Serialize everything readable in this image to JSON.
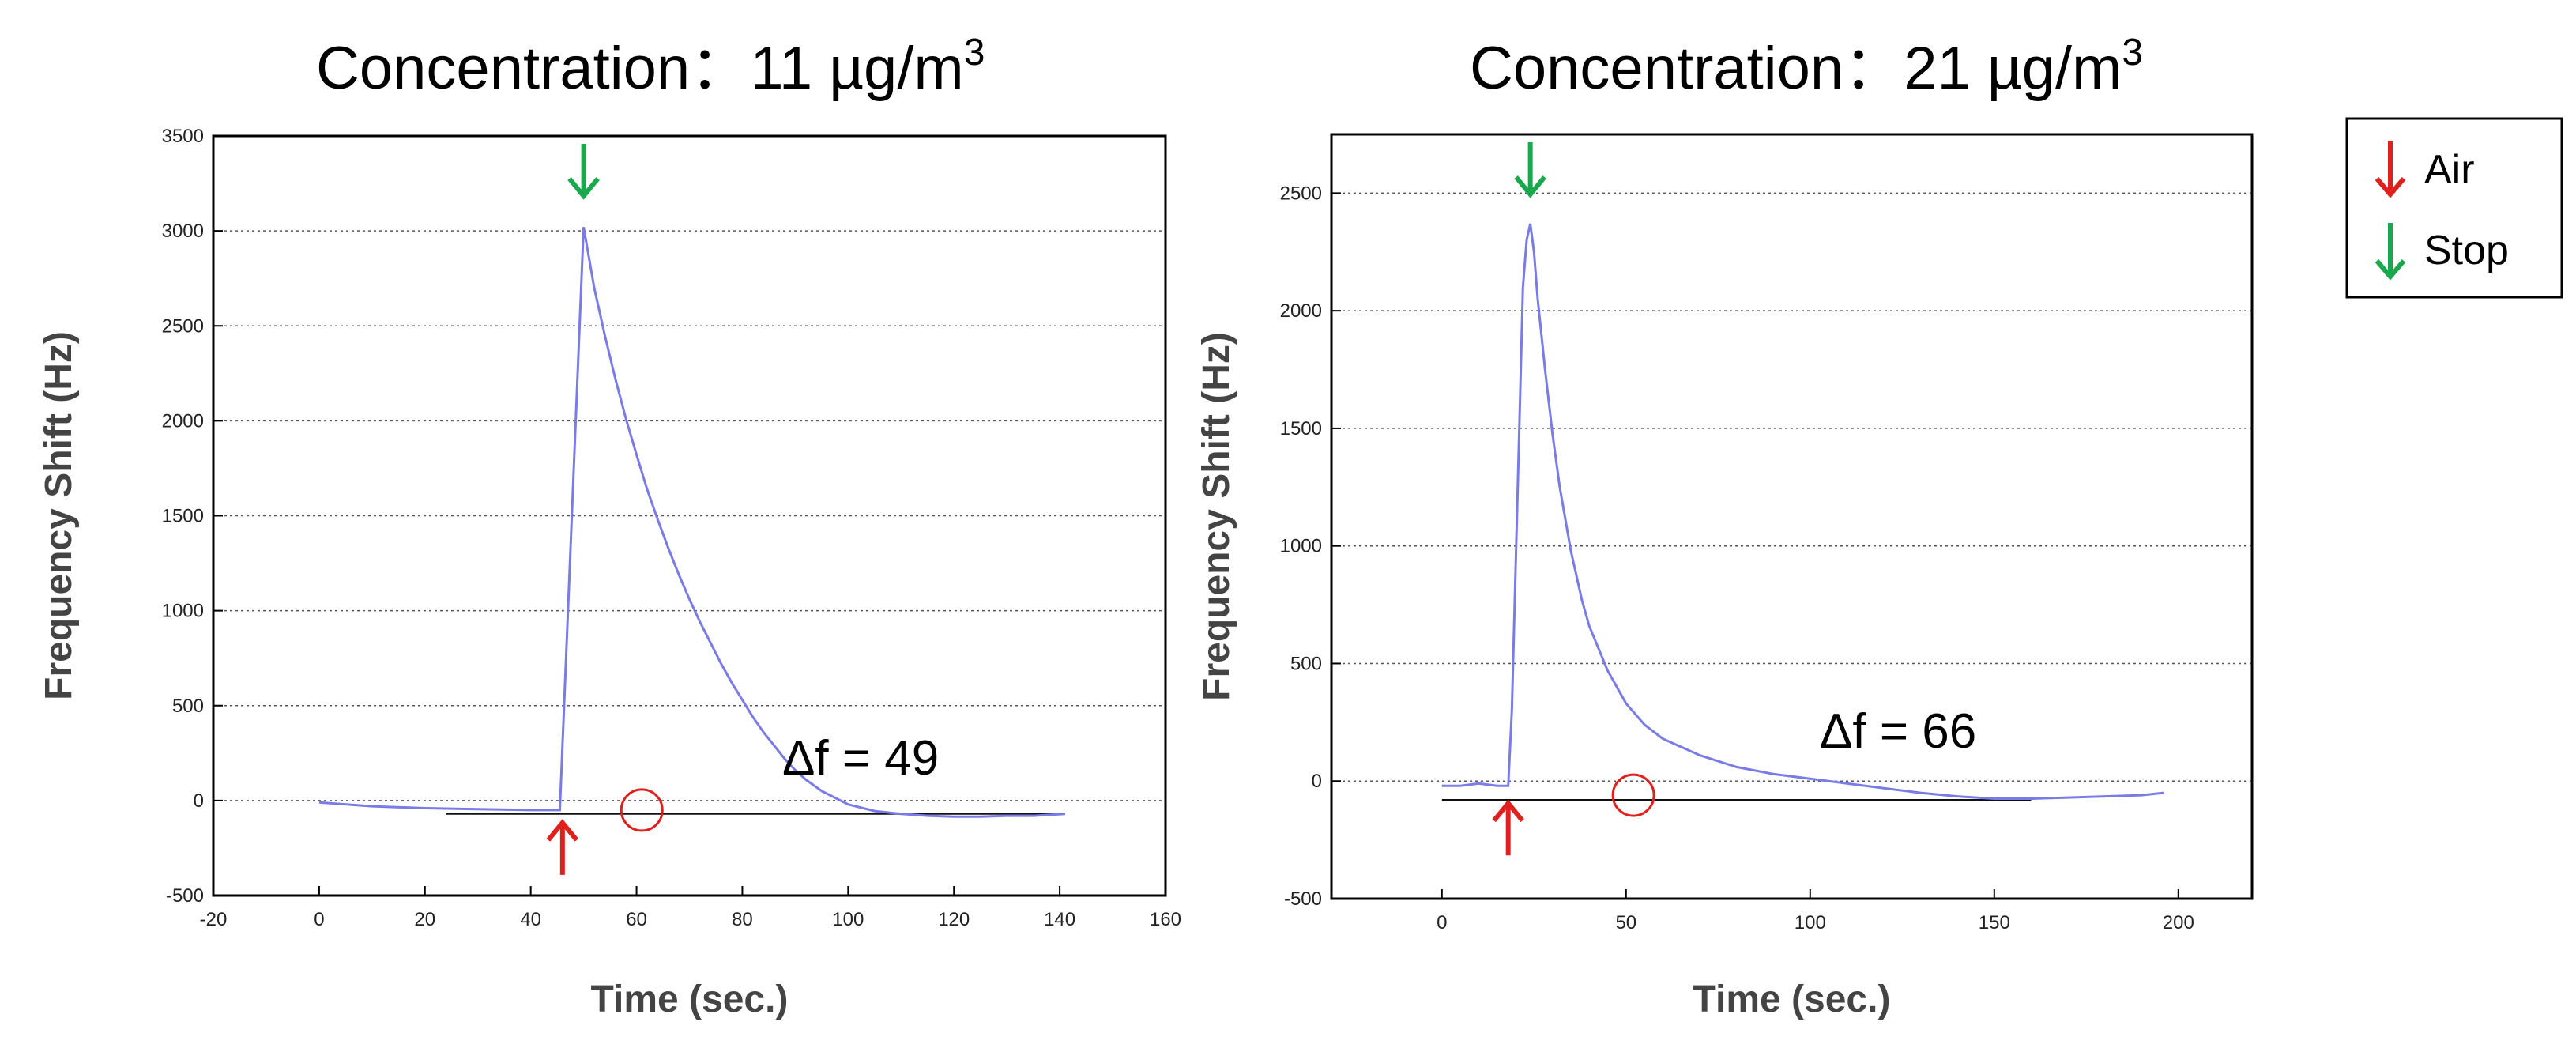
{
  "legend": {
    "items": [
      {
        "label": "Air",
        "color": "#e0201c",
        "icon": "arrow-up-icon"
      },
      {
        "label": "Stop",
        "color": "#19a84c",
        "icon": "arrow-down-icon"
      }
    ]
  },
  "chart_data": [
    {
      "type": "line",
      "title_prefix": "Concentration：",
      "title_value": "11 µg/m",
      "title_superscript": "3",
      "xlabel": "Time (sec.)",
      "ylabel": "Frequency Shift (Hz)",
      "xlim": [
        -20,
        160
      ],
      "ylim": [
        -500,
        3500
      ],
      "xticks": [
        -20,
        0,
        20,
        40,
        60,
        80,
        100,
        120,
        140,
        160
      ],
      "yticks": [
        -500,
        0,
        500,
        1000,
        1500,
        2000,
        2500,
        3000,
        3500
      ],
      "grid": "horizontal-dotted",
      "annotation": "Δf = 49",
      "air_marker_x": 46,
      "stop_marker_x": 50,
      "circle_marker": {
        "x": 61,
        "y": -50
      },
      "baseline": {
        "x": [
          24,
          141
        ],
        "y": -70
      },
      "series": [
        {
          "name": "Frequency shift",
          "color": "#7b7be8",
          "x": [
            0,
            10,
            20,
            30,
            40,
            45.5,
            50,
            52,
            54,
            56,
            58,
            60,
            62,
            64,
            66,
            68,
            70,
            72,
            74,
            76,
            78,
            80,
            82,
            84,
            86,
            88,
            90,
            92,
            95,
            100,
            105,
            110,
            115,
            120,
            125,
            130,
            135,
            141
          ],
          "y": [
            -10,
            -30,
            -40,
            -45,
            -50,
            -50,
            3020,
            2700,
            2450,
            2220,
            2010,
            1820,
            1640,
            1480,
            1330,
            1190,
            1060,
            940,
            830,
            720,
            620,
            530,
            440,
            360,
            290,
            220,
            160,
            110,
            50,
            -20,
            -55,
            -70,
            -80,
            -85,
            -85,
            -80,
            -80,
            -70
          ]
        }
      ]
    },
    {
      "type": "line",
      "title_prefix": "Concentration：",
      "title_value": "21 µg/m",
      "title_superscript": "3",
      "xlabel": "Time (sec.)",
      "ylabel": "Frequency Shift (Hz)",
      "xlim": [
        -30,
        220
      ],
      "ylim": [
        -500,
        2750
      ],
      "xticks": [
        0,
        50,
        100,
        150,
        200
      ],
      "yticks": [
        -500,
        0,
        500,
        1000,
        1500,
        2000,
        2500
      ],
      "grid": "horizontal-dotted",
      "annotation": "Δf = 66",
      "air_marker_x": 18,
      "stop_marker_x": 24,
      "circle_marker": {
        "x": 52,
        "y": -60
      },
      "baseline": {
        "x": [
          0,
          160
        ],
        "y": -80
      },
      "series": [
        {
          "name": "Frequency shift",
          "color": "#7b7be8",
          "x": [
            0,
            5,
            10,
            15,
            17,
            18,
            19,
            21,
            22,
            23,
            24,
            25,
            26,
            28,
            30,
            32,
            35,
            38,
            40,
            45,
            50,
            55,
            60,
            70,
            80,
            90,
            100,
            110,
            120,
            130,
            140,
            150,
            160,
            170,
            180,
            190,
            196
          ],
          "y": [
            -20,
            -20,
            -10,
            -20,
            -20,
            -20,
            300,
            1500,
            2100,
            2300,
            2370,
            2250,
            2050,
            1750,
            1480,
            1250,
            980,
            770,
            660,
            470,
            330,
            240,
            180,
            110,
            60,
            30,
            10,
            -10,
            -30,
            -50,
            -65,
            -75,
            -75,
            -70,
            -65,
            -60,
            -50
          ]
        }
      ]
    }
  ]
}
